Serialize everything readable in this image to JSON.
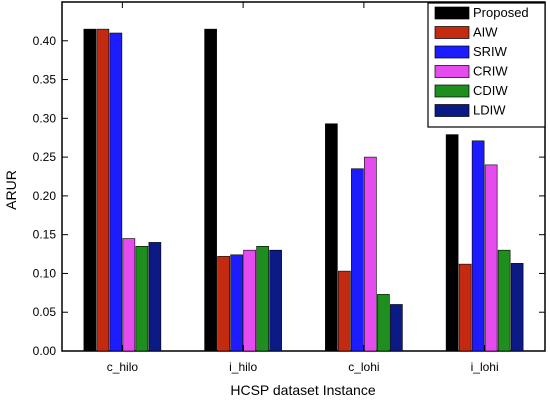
{
  "chart_data": {
    "type": "bar",
    "categories": [
      "c_hilo",
      "i_hilo",
      "c_lohi",
      "i_lohi"
    ],
    "series": [
      {
        "name": "Proposed",
        "values": [
          0.415,
          0.415,
          0.293,
          0.279
        ],
        "color": "#000000"
      },
      {
        "name": "AIW",
        "values": [
          0.415,
          0.122,
          0.103,
          0.112
        ],
        "color": "#c42a10"
      },
      {
        "name": "SRIW",
        "values": [
          0.41,
          0.124,
          0.235,
          0.271
        ],
        "color": "#1c1cff"
      },
      {
        "name": "CRIW",
        "values": [
          0.145,
          0.13,
          0.25,
          0.24
        ],
        "color": "#e44cf0"
      },
      {
        "name": "CDIW",
        "values": [
          0.135,
          0.135,
          0.073,
          0.13
        ],
        "color": "#1e8f1e"
      },
      {
        "name": "LDIW",
        "values": [
          0.14,
          0.13,
          0.06,
          0.113
        ],
        "color": "#0c1a86"
      }
    ],
    "xlabel": "HCSP dataset Instance",
    "ylabel": "ARUR",
    "ylim": [
      0.0,
      0.45
    ],
    "yticks": [
      "0.00",
      "0.05",
      "0.10",
      "0.15",
      "0.20",
      "0.25",
      "0.30",
      "0.35",
      "0.40"
    ],
    "legend_position": "top-right",
    "grid": false
  }
}
